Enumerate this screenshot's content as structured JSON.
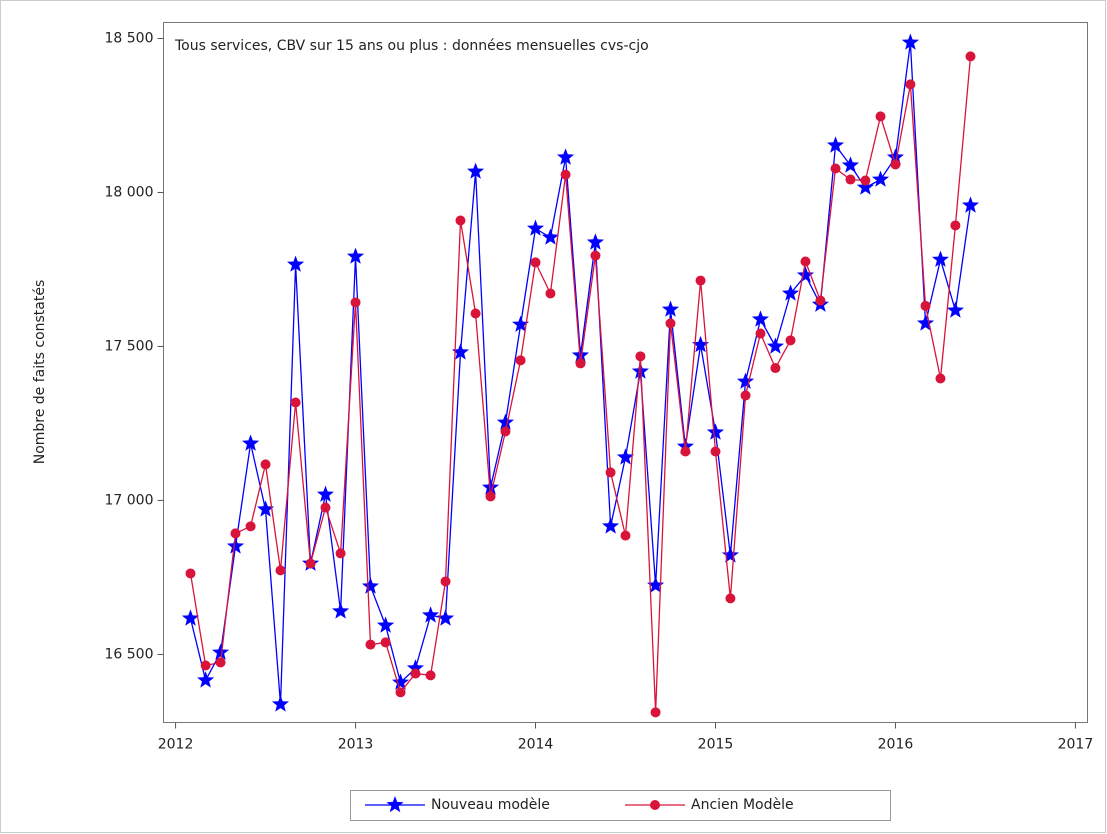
{
  "chart_data": {
    "type": "line",
    "annotation": "Tous services, CBV sur 15 ans ou plus : données mensuelles cvs-cjo",
    "y_label": "Nombre de faits constatés",
    "x": [
      2012.083,
      2012.167,
      2012.25,
      2012.333,
      2012.417,
      2012.5,
      2012.583,
      2012.667,
      2012.75,
      2012.833,
      2012.917,
      2013.0,
      2013.083,
      2013.167,
      2013.25,
      2013.333,
      2013.417,
      2013.5,
      2013.583,
      2013.667,
      2013.75,
      2013.833,
      2013.917,
      2014.0,
      2014.083,
      2014.167,
      2014.25,
      2014.333,
      2014.417,
      2014.5,
      2014.583,
      2014.667,
      2014.75,
      2014.833,
      2014.917,
      2015.0,
      2015.083,
      2015.167,
      2015.25,
      2015.333,
      2015.417,
      2015.5,
      2015.583,
      2015.667,
      2015.75,
      2015.833,
      2015.917,
      2016.0,
      2016.083,
      2016.167,
      2016.25,
      2016.333,
      2016.417
    ],
    "series": [
      {
        "name": "Nouveau modèle",
        "color": "#0000ff",
        "marker": "star",
        "values": [
          16617,
          16416,
          16506,
          16851,
          17185,
          16971,
          16338,
          17766,
          16795,
          17019,
          16640,
          17792,
          16721,
          16594,
          16409,
          16455,
          16627,
          16617,
          17481,
          18068,
          17042,
          17253,
          17571,
          17883,
          17854,
          18114,
          17471,
          17838,
          16916,
          17140,
          17419,
          16724,
          17620,
          17175,
          17505,
          17221,
          16822,
          17386,
          17588,
          17500,
          17672,
          17731,
          17636,
          18153,
          18088,
          18016,
          18042,
          18114,
          18487,
          17575,
          17782,
          17617,
          17958
        ]
      },
      {
        "name": "Ancien Modèle",
        "color": "#d9143a",
        "marker": "circle",
        "values": [
          16763,
          16464,
          16474,
          16893,
          16916,
          17117,
          16773,
          17318,
          16795,
          16977,
          16828,
          17643,
          16532,
          16539,
          16377,
          16438,
          16432,
          16737,
          17909,
          17607,
          17013,
          17224,
          17455,
          17773,
          17672,
          18058,
          17445,
          17795,
          17091,
          16886,
          17468,
          16312,
          17575,
          17159,
          17714,
          17159,
          16682,
          17341,
          17542,
          17430,
          17520,
          17776,
          17649,
          18078,
          18042,
          18039,
          18247,
          18091,
          18351,
          17632,
          17396,
          17893,
          18442
        ]
      }
    ],
    "xlim": [
      2011.933,
      2017.067
    ],
    "xticks": [
      2012,
      2013,
      2014,
      2015,
      2016,
      2017
    ],
    "ylim": [
      16279,
      18552
    ],
    "yticks": [
      {
        "value": 16500,
        "label": "16 500"
      },
      {
        "value": 17000,
        "label": "17 000"
      },
      {
        "value": 17500,
        "label": "17 500"
      },
      {
        "value": 18000,
        "label": "18 000"
      },
      {
        "value": 18500,
        "label": "18 500"
      }
    ],
    "legend": "bottom"
  }
}
